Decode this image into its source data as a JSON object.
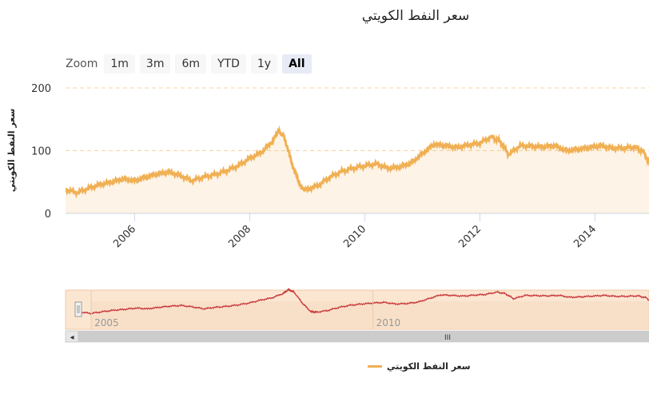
{
  "chart_data": {
    "type": "area",
    "title": "سعر النفط الكويتي",
    "ylabel": "سعر النفط الكويتي",
    "ylim": [
      0,
      200
    ],
    "yticks": [
      0,
      100,
      200
    ],
    "xticks": [
      "2006",
      "2008",
      "2010",
      "2012",
      "2014"
    ],
    "navigator_xticks": [
      "2005",
      "2010"
    ],
    "series": [
      {
        "name": "سعر النفط الكويتي",
        "color": "#f0b054",
        "x": [
          2004.8,
          2005.0,
          2005.2,
          2005.4,
          2005.6,
          2005.8,
          2006.0,
          2006.2,
          2006.4,
          2006.6,
          2006.8,
          2007.0,
          2007.2,
          2007.4,
          2007.6,
          2007.8,
          2008.0,
          2008.2,
          2008.4,
          2008.5,
          2008.6,
          2008.75,
          2008.9,
          2009.0,
          2009.2,
          2009.4,
          2009.6,
          2009.8,
          2010.0,
          2010.2,
          2010.4,
          2010.6,
          2010.8,
          2011.0,
          2011.2,
          2011.4,
          2011.6,
          2011.8,
          2012.0,
          2012.2,
          2012.35,
          2012.5,
          2012.7,
          2012.9,
          2013.1,
          2013.3,
          2013.5,
          2013.7,
          2013.9,
          2014.1,
          2014.3,
          2014.5,
          2014.7,
          2014.85,
          2015.0
        ],
        "values": [
          38,
          33,
          40,
          46,
          50,
          55,
          52,
          58,
          63,
          66,
          60,
          52,
          58,
          62,
          68,
          76,
          88,
          97,
          115,
          132,
          122,
          75,
          40,
          38,
          45,
          58,
          67,
          72,
          76,
          79,
          72,
          74,
          80,
          95,
          110,
          108,
          105,
          109,
          112,
          122,
          115,
          94,
          108,
          107,
          106,
          108,
          100,
          102,
          105,
          108,
          104,
          104,
          106,
          98,
          68
        ]
      }
    ]
  },
  "zoom": {
    "label": "Zoom",
    "buttons": [
      "1m",
      "3m",
      "6m",
      "YTD",
      "1y",
      "All"
    ],
    "active": "All"
  },
  "scrollbar": {
    "left_arrow": "◂",
    "grip": "III"
  },
  "legend": {
    "label": "سعر النفط الكويتي"
  }
}
